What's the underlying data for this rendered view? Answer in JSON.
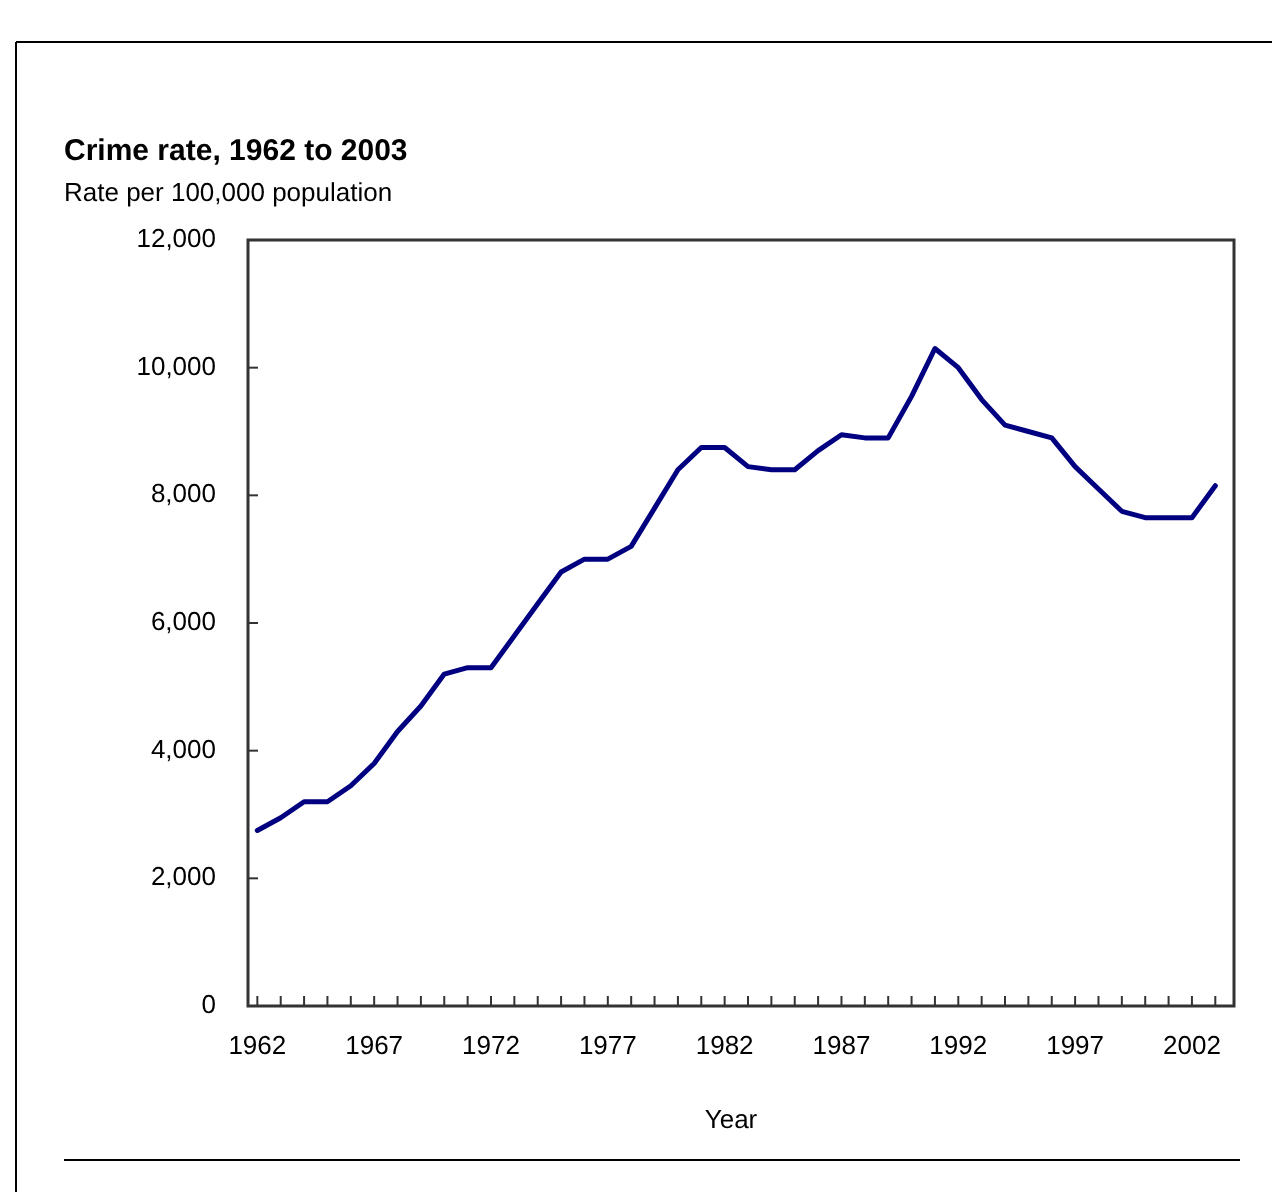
{
  "chart_data": {
    "type": "line",
    "title": "Crime rate, 1962 to 2003",
    "subtitle": "Rate per 100,000 population",
    "xlabel": "Year",
    "x": [
      1962,
      1963,
      1964,
      1965,
      1966,
      1967,
      1968,
      1969,
      1970,
      1971,
      1972,
      1973,
      1974,
      1975,
      1976,
      1977,
      1978,
      1979,
      1980,
      1981,
      1982,
      1983,
      1984,
      1985,
      1986,
      1987,
      1988,
      1989,
      1990,
      1991,
      1992,
      1993,
      1994,
      1995,
      1996,
      1997,
      1998,
      1999,
      2000,
      2001,
      2002,
      2003
    ],
    "series": [
      {
        "color": "#000080",
        "values": [
          2750,
          2950,
          3200,
          3200,
          3450,
          3800,
          4300,
          4700,
          5200,
          5300,
          5300,
          5800,
          6300,
          6800,
          7000,
          7000,
          7200,
          7800,
          8400,
          8750,
          8750,
          8450,
          8400,
          8400,
          8700,
          8950,
          8900,
          8900,
          9550,
          10300,
          10000,
          9500,
          9100,
          9000,
          8900,
          8450,
          8100,
          7750,
          7650,
          7650,
          7650,
          8150
        ]
      }
    ],
    "xlim": [
      1961.6,
      2003.8
    ],
    "xticks": [
      1962,
      {
        "value": 1963,
        "label": null
      },
      {
        "value": 1964,
        "label": null
      },
      {
        "value": 1965,
        "label": null
      },
      {
        "value": 1966,
        "label": null
      },
      1967,
      {
        "value": 1968,
        "label": null
      },
      {
        "value": 1969,
        "label": null
      },
      {
        "value": 1970,
        "label": null
      },
      {
        "value": 1971,
        "label": null
      },
      1972,
      {
        "value": 1973,
        "label": null
      },
      {
        "value": 1974,
        "label": null
      },
      {
        "value": 1975,
        "label": null
      },
      {
        "value": 1976,
        "label": null
      },
      1977,
      {
        "value": 1978,
        "label": null
      },
      {
        "value": 1979,
        "label": null
      },
      {
        "value": 1980,
        "label": null
      },
      {
        "value": 1981,
        "label": null
      },
      1982,
      {
        "value": 1983,
        "label": null
      },
      {
        "value": 1984,
        "label": null
      },
      {
        "value": 1985,
        "label": null
      },
      {
        "value": 1986,
        "label": null
      },
      1987,
      {
        "value": 1988,
        "label": null
      },
      {
        "value": 1989,
        "label": null
      },
      {
        "value": 1990,
        "label": null
      },
      {
        "value": 1991,
        "label": null
      },
      1992,
      {
        "value": 1993,
        "label": null
      },
      {
        "value": 1994,
        "label": null
      },
      {
        "value": 1995,
        "label": null
      },
      {
        "value": 1996,
        "label": null
      },
      1997,
      {
        "value": 1998,
        "label": null
      },
      {
        "value": 1999,
        "label": null
      },
      {
        "value": 2000,
        "label": null
      },
      {
        "value": 2001,
        "label": null
      },
      2002,
      {
        "value": 2003,
        "label": null
      }
    ],
    "ylim": [
      0,
      12000
    ],
    "yticks": [
      {
        "value": 0,
        "label": "0"
      },
      {
        "value": 2000,
        "label": "2,000"
      },
      {
        "value": 4000,
        "label": "4,000"
      },
      {
        "value": 6000,
        "label": "6,000"
      },
      {
        "value": 8000,
        "label": "8,000"
      },
      {
        "value": 10000,
        "label": "10,000"
      },
      {
        "value": 12000,
        "label": "12,000"
      }
    ],
    "grid": false,
    "marker": "none",
    "line_style": "solid"
  }
}
